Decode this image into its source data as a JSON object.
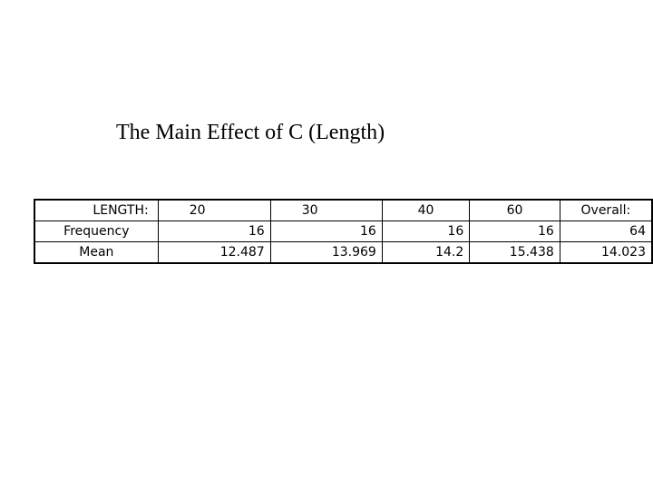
{
  "title": "The Main Effect of C (Length)",
  "table": {
    "header": [
      "LENGTH:",
      "20",
      "30",
      "40",
      "60",
      "Overall:"
    ],
    "rows": [
      [
        "Frequency",
        "16",
        "16",
        "16",
        "16",
        "64"
      ],
      [
        "Mean",
        "12.487",
        "13.969",
        "14.2",
        "15.438",
        "14.023"
      ]
    ]
  }
}
